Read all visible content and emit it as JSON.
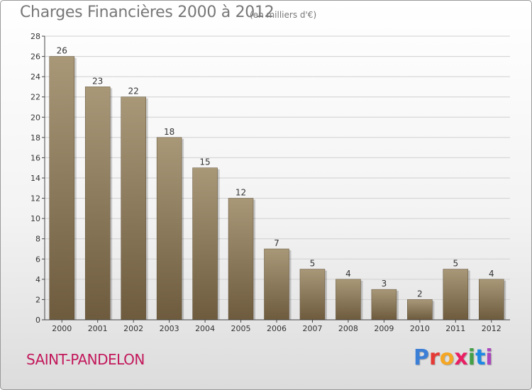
{
  "header": {
    "title": "Charges Financières 2000 à 2012",
    "subtitle": "(en milliers d'€)"
  },
  "footer": {
    "location": "SAINT-PANDELON",
    "logo_text": "Proxiti",
    "logo_colors": [
      "#3b7fd6",
      "#e53935",
      "#f5a623",
      "#e91e63",
      "#43a047",
      "#1e88e5",
      "#ab47bc"
    ]
  },
  "colors": {
    "bar_light": "#a89878",
    "bar_dark": "#6e5b3e",
    "axis": "#444444",
    "grid": "#d0d0d0",
    "text": "#333333"
  },
  "chart_data": {
    "type": "bar",
    "categories": [
      "2000",
      "2001",
      "2002",
      "2003",
      "2004",
      "2005",
      "2006",
      "2007",
      "2008",
      "2009",
      "2010",
      "2011",
      "2012"
    ],
    "values": [
      26,
      23,
      22,
      18,
      15,
      12,
      7,
      5,
      4,
      3,
      2,
      5,
      4
    ],
    "data_labels": [
      "26",
      "23",
      "22",
      "18",
      "15",
      "12",
      "7",
      "5",
      "4",
      "3",
      "2",
      "5",
      "4"
    ],
    "y_ticks": [
      "0",
      "2",
      "4",
      "6",
      "8",
      "10",
      "12",
      "14",
      "16",
      "18",
      "20",
      "22",
      "24",
      "26",
      "28"
    ],
    "ylim": [
      0,
      28
    ],
    "grid": true
  }
}
